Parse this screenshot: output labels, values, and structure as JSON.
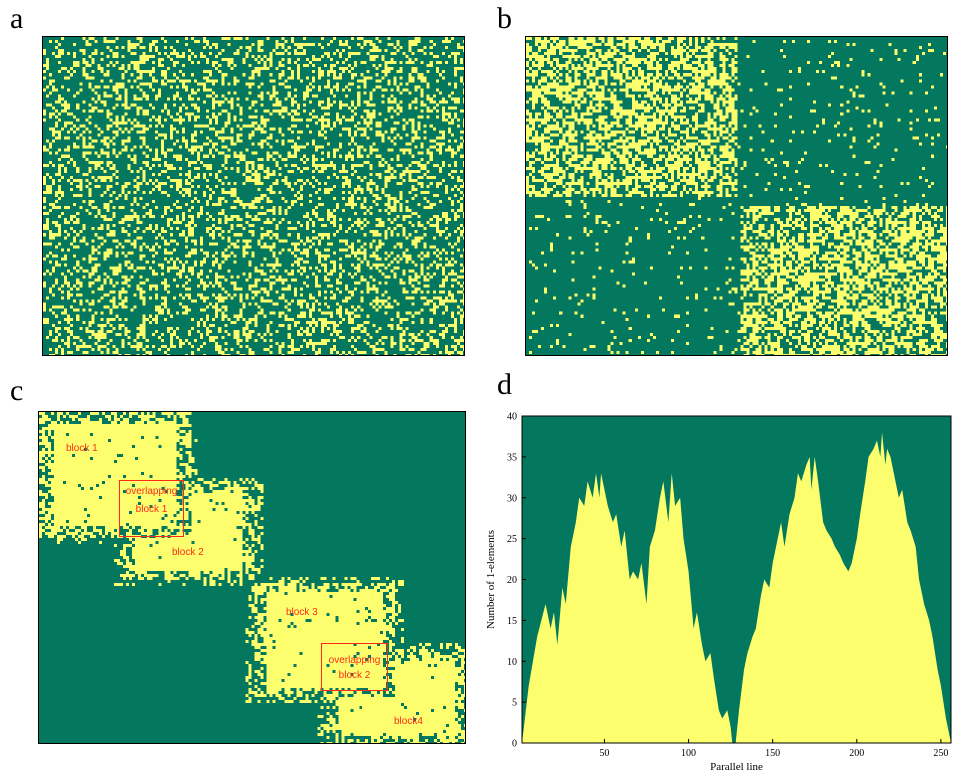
{
  "figure": {
    "panel_labels": [
      "a",
      "b",
      "c",
      "d"
    ],
    "colors": {
      "background": "#03785e",
      "ones": "#fdfe6e",
      "annotation": "#ff2a1a",
      "frame": "#000000"
    },
    "panel_c_annotations": {
      "block1": "block 1",
      "block2": "block 2",
      "block3": "block 3",
      "block4": "block4",
      "overlap1_line1": "overlapping",
      "overlap1_line2": "block 1",
      "overlap2_line1": "overlapping",
      "overlap2_line2": "block 2"
    }
  },
  "chart_data": [
    {
      "panel": "a",
      "type": "heatmap",
      "description_values": "random sparse binary matrix",
      "density": 0.3,
      "grid": false
    },
    {
      "panel": "b",
      "type": "heatmap",
      "description_values": "binary matrix with two dense diagonal blocks",
      "density_in_blocks": 0.55,
      "density_outside": 0.05,
      "grid": false
    },
    {
      "panel": "c",
      "type": "heatmap",
      "description_values": "binary matrix with four overlapping dense blocks along the diagonal",
      "grid": false
    },
    {
      "panel": "d",
      "type": "area",
      "title": "",
      "xlabel": "Parallel line",
      "ylabel": "Number of 1-elements",
      "xlim": [
        1,
        256
      ],
      "ylim": [
        0,
        40
      ],
      "xticks": [
        50,
        100,
        150,
        200,
        250
      ],
      "yticks": [
        0,
        5,
        10,
        15,
        20,
        25,
        30,
        35,
        40
      ],
      "grid": false,
      "series": [
        {
          "x": [
            1,
            5,
            10,
            15,
            18,
            20,
            22,
            25,
            27,
            30,
            33,
            35,
            38,
            40,
            43,
            45,
            47,
            48,
            50,
            52,
            55,
            57,
            60,
            62,
            65,
            67,
            70,
            72,
            75,
            77,
            80,
            83,
            85,
            88,
            90,
            92,
            95,
            97,
            100,
            103,
            105,
            108,
            110,
            113,
            115,
            118,
            120,
            123,
            125,
            126,
            127,
            128,
            130,
            133,
            135,
            138,
            140,
            143,
            145,
            148,
            150,
            153,
            155,
            157,
            160,
            163,
            165,
            167,
            170,
            172,
            173,
            175,
            177,
            180,
            182,
            185,
            187,
            190,
            192,
            195,
            197,
            200,
            202,
            205,
            207,
            210,
            212,
            214,
            215,
            217,
            218,
            220,
            222,
            225,
            227,
            230,
            232,
            235,
            237,
            240,
            243,
            245,
            248,
            250,
            253,
            256
          ],
          "y": [
            0,
            7,
            13,
            17,
            14,
            16,
            12,
            19,
            17,
            24,
            27,
            30,
            29,
            32,
            30,
            33,
            30,
            33,
            31,
            29,
            27,
            28,
            24,
            26,
            20,
            21,
            20,
            22,
            17,
            24,
            26,
            30,
            32,
            27,
            33,
            29,
            30,
            25,
            21,
            14,
            16,
            12,
            10,
            11,
            8,
            4,
            3,
            4,
            2,
            0,
            0,
            0,
            4,
            9,
            11,
            13,
            14,
            18,
            20,
            19,
            22,
            25,
            27,
            24,
            28,
            30,
            33,
            32,
            34,
            35,
            31,
            35,
            32,
            27,
            26,
            25,
            24,
            23,
            22,
            21,
            22,
            25,
            28,
            32,
            35,
            36,
            37,
            35,
            38,
            34,
            36,
            35,
            33,
            30,
            31,
            27,
            26,
            24,
            20,
            17,
            15,
            13,
            9,
            7,
            3,
            0
          ]
        }
      ]
    }
  ]
}
